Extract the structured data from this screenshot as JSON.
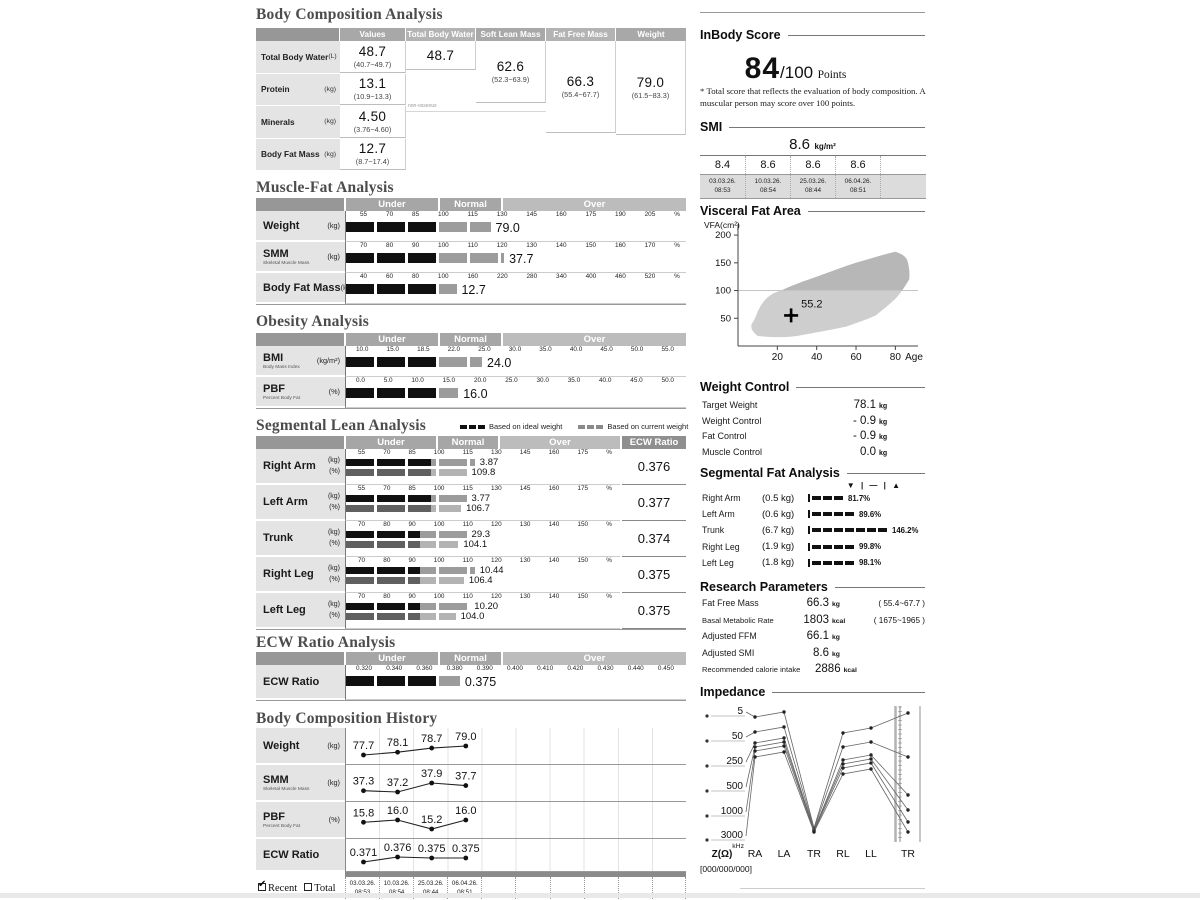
{
  "zones": {
    "under": "Under",
    "normal": "Normal",
    "over": "Over"
  },
  "dates": [
    {
      "date": "03.03.26.",
      "time": "08:53"
    },
    {
      "date": "10.03.26.",
      "time": "08:54"
    },
    {
      "date": "25.03.26.",
      "time": "08:44"
    },
    {
      "date": "06.04.26.",
      "time": "08:51"
    }
  ],
  "body_comp": {
    "title": "Body Composition Analysis",
    "col_headers": [
      "Values",
      "Total Body Water",
      "Soft Lean Mass",
      "Fat Free Mass",
      "Weight"
    ],
    "rows": [
      {
        "label": "Total Body Water",
        "unit": "(L)",
        "value": "48.7",
        "range": "(40.7~49.7)"
      },
      {
        "label": "Protein",
        "unit": "(kg)",
        "value": "13.1",
        "range": "(10.9~13.3)"
      },
      {
        "label": "Minerals",
        "unit": "(kg)",
        "value": "4.50",
        "range": "(3.76~4.60)"
      },
      {
        "label": "Body Fat Mass",
        "unit": "(kg)",
        "value": "12.7",
        "range": "(8.7~17.4)"
      }
    ],
    "tbw_value": "48.7",
    "slm_value": "62.6",
    "slm_range": "(52.3~63.9)",
    "ffm_value": "66.3",
    "ffm_range": "(55.4~67.7)",
    "weight_value": "79.0",
    "weight_range": "(61.5~83.3)",
    "fine_print": "non-osseous"
  },
  "muscle_fat": {
    "title": "Muscle-Fat Analysis",
    "rows": [
      {
        "label": "Weight",
        "sub": "",
        "unit": "(kg)",
        "ticks": [
          "55",
          "70",
          "85",
          "100",
          "115",
          "130",
          "145",
          "160",
          "175",
          "190",
          "205",
          "%"
        ],
        "value": "79.0",
        "bar": {
          "b": 0.273,
          "g": 0.425
        }
      },
      {
        "label": "SMM",
        "sub": "Skeletal Muscle Mass",
        "unit": "(kg)",
        "ticks": [
          "70",
          "80",
          "90",
          "100",
          "110",
          "120",
          "130",
          "140",
          "150",
          "160",
          "170",
          "%"
        ],
        "value": "37.7",
        "bar": {
          "b": 0.273,
          "g": 0.465
        }
      },
      {
        "label": "Body Fat Mass",
        "sub": "",
        "unit": "(kg)",
        "ticks": [
          "40",
          "60",
          "80",
          "100",
          "160",
          "220",
          "280",
          "340",
          "400",
          "460",
          "520",
          "%"
        ],
        "value": "12.7",
        "bar": {
          "b": 0.273,
          "g": 0.325
        }
      }
    ]
  },
  "obesity": {
    "title": "Obesity Analysis",
    "rows": [
      {
        "label": "BMI",
        "sub": "Body Mass Index",
        "unit": "(kg/m²)",
        "ticks": [
          "10.0",
          "15.0",
          "18.5",
          "22.0",
          "25.0",
          "30.0",
          "35.0",
          "40.0",
          "45.0",
          "50.0",
          "55.0"
        ],
        "value": "24.0",
        "bar": {
          "b": 0.273,
          "g": 0.4
        }
      },
      {
        "label": "PBF",
        "sub": "Percent Body Fat",
        "unit": "(%)",
        "ticks": [
          "0.0",
          "5.0",
          "10.0",
          "15.0",
          "20.0",
          "25.0",
          "30.0",
          "35.0",
          "40.0",
          "45.0",
          "50.0"
        ],
        "value": "16.0",
        "bar": {
          "b": 0.273,
          "g": 0.33
        }
      }
    ]
  },
  "seg_lean": {
    "title": "Segmental Lean Analysis",
    "legend_ideal": "Based on ideal weight",
    "legend_current": "Based on current weight",
    "ecw_header": "ECW Ratio",
    "rows": [
      {
        "label": "Right Arm",
        "unit1": "(kg)",
        "unit2": "(%)",
        "ticks": [
          "55",
          "70",
          "85",
          "100",
          "115",
          "130",
          "145",
          "160",
          "175",
          "%"
        ],
        "kg": "3.87",
        "pct": "109.8",
        "ecw": "0.376",
        "bar1": {
          "b": 0.31,
          "g": 0.47
        },
        "bar2": {
          "b": 0.31,
          "g": 0.44
        }
      },
      {
        "label": "Left Arm",
        "unit1": "(kg)",
        "unit2": "(%)",
        "ticks": [
          "55",
          "70",
          "85",
          "100",
          "115",
          "130",
          "145",
          "160",
          "175",
          "%"
        ],
        "kg": "3.77",
        "pct": "106.7",
        "ecw": "0.377",
        "bar1": {
          "b": 0.31,
          "g": 0.44
        },
        "bar2": {
          "b": 0.31,
          "g": 0.42
        }
      },
      {
        "label": "Trunk",
        "unit1": "(kg)",
        "unit2": "(%)",
        "ticks": [
          "70",
          "80",
          "90",
          "100",
          "110",
          "120",
          "130",
          "140",
          "150",
          "%"
        ],
        "kg": "29.3",
        "pct": "104.1",
        "ecw": "0.374",
        "bar1": {
          "b": 0.27,
          "g": 0.44
        },
        "bar2": {
          "b": 0.27,
          "g": 0.41
        }
      },
      {
        "label": "Right Leg",
        "unit1": "(kg)",
        "unit2": "(%)",
        "ticks": [
          "70",
          "80",
          "90",
          "100",
          "110",
          "120",
          "130",
          "140",
          "150",
          "%"
        ],
        "kg": "10.44",
        "pct": "106.4",
        "ecw": "0.375",
        "bar1": {
          "b": 0.27,
          "g": 0.47
        },
        "bar2": {
          "b": 0.27,
          "g": 0.43
        }
      },
      {
        "label": "Left Leg",
        "unit1": "(kg)",
        "unit2": "(%)",
        "ticks": [
          "70",
          "80",
          "90",
          "100",
          "110",
          "120",
          "130",
          "140",
          "150",
          "%"
        ],
        "kg": "10.20",
        "pct": "104.0",
        "ecw": "0.375",
        "bar1": {
          "b": 0.27,
          "g": 0.45
        },
        "bar2": {
          "b": 0.27,
          "g": 0.4
        }
      }
    ]
  },
  "ecw_analysis": {
    "title": "ECW Ratio Analysis",
    "row": {
      "label": "ECW Ratio",
      "ticks": [
        "0.320",
        "0.340",
        "0.360",
        "0.380",
        "0.390",
        "0.400",
        "0.410",
        "0.420",
        "0.430",
        "0.440",
        "0.450"
      ],
      "value": "0.375",
      "bar": {
        "b": 0.273,
        "g": 0.335
      }
    }
  },
  "history": {
    "title": "Body Composition History",
    "recent_label": "Recent",
    "total_label": "Total",
    "rows": [
      {
        "label": "Weight",
        "sub": "",
        "unit": "(kg)",
        "values": [
          77.7,
          78.1,
          78.7,
          79.0
        ],
        "labels": [
          "77.7",
          "78.1",
          "78.7",
          "79.0"
        ]
      },
      {
        "label": "SMM",
        "sub": "Skeletal Muscle Mass",
        "unit": "(kg)",
        "values": [
          37.3,
          37.2,
          37.9,
          37.7
        ],
        "labels": [
          "37.3",
          "37.2",
          "37.9",
          "37.7"
        ]
      },
      {
        "label": "PBF",
        "sub": "Percent Body Fat",
        "unit": "(%)",
        "values": [
          15.8,
          16.0,
          15.2,
          16.0
        ],
        "labels": [
          "15.8",
          "16.0",
          "15.2",
          "16.0"
        ]
      },
      {
        "label": "ECW Ratio",
        "sub": "",
        "unit": "",
        "values": [
          0.371,
          0.376,
          0.375,
          0.375
        ],
        "labels": [
          "0.371",
          "0.376",
          "0.375",
          "0.375"
        ]
      }
    ]
  },
  "score": {
    "title": "InBody Score",
    "value": "84",
    "denominator": "/100",
    "points_label": "Points",
    "note": "* Total score that reflects the evaluation of body composition. A muscular person may score over 100 points."
  },
  "smi": {
    "title": "SMI",
    "current_value": "8.6",
    "current_unit": "kg/m²",
    "values": [
      "8.4",
      "8.6",
      "8.6",
      "8.6"
    ]
  },
  "vfa": {
    "title": "Visceral Fat Area",
    "ylabel": "VFA(cm²)",
    "yticks": [
      "200",
      "150",
      "100",
      "50"
    ],
    "ytick_values": [
      200,
      150,
      100,
      50
    ],
    "xticks": [
      "20",
      "40",
      "60",
      "80"
    ],
    "xtick_values": [
      20,
      40,
      60,
      80
    ],
    "xlabel": "Age",
    "point_label": "55.2",
    "point_age": 27,
    "point_value": 55.2
  },
  "weight_control": {
    "title": "Weight Control",
    "rows": [
      {
        "label": "Target Weight",
        "value": "78.1",
        "unit": "kg"
      },
      {
        "label": "Weight Control",
        "value": "- 0.9",
        "unit": "kg"
      },
      {
        "label": "Fat Control",
        "value": "- 0.9",
        "unit": "kg"
      },
      {
        "label": "Muscle Control",
        "value": "0.0",
        "unit": "kg"
      }
    ]
  },
  "seg_fat": {
    "title": "Segmental Fat Analysis",
    "legend": "▼ | — | ▲",
    "rows": [
      {
        "label": "Right Arm",
        "kg": "(0.5 kg)",
        "pct": "81.7%",
        "dashes": 3
      },
      {
        "label": "Left Arm",
        "kg": "(0.6 kg)",
        "pct": "89.6%",
        "dashes": 4
      },
      {
        "label": "Trunk",
        "kg": "(6.7 kg)",
        "pct": "146.2%",
        "dashes": 7
      },
      {
        "label": "Right Leg",
        "kg": "(1.9 kg)",
        "pct": "99.8%",
        "dashes": 4
      },
      {
        "label": "Left Leg",
        "kg": "(1.8 kg)",
        "pct": "98.1%",
        "dashes": 4
      }
    ]
  },
  "research": {
    "title": "Research Parameters",
    "rows": [
      {
        "label": "Fat Free Mass",
        "value": "66.3",
        "unit": "kg",
        "range": "(  55.4~67.7  )"
      },
      {
        "label": "Basal Metabolic Rate",
        "value": "1803",
        "unit": "kcal",
        "range": "( 1675~1965 )"
      },
      {
        "label": "Adjusted FFM",
        "value": "66.1",
        "unit": "kg",
        "range": ""
      },
      {
        "label": "Adjusted SMI",
        "value": "8.6",
        "unit": "kg",
        "range": ""
      },
      {
        "label": "Recommended calorie intake",
        "value": "2886",
        "unit": "kcal",
        "range": ""
      }
    ]
  },
  "impedance": {
    "title": "Impedance",
    "freqs": [
      "5",
      "50",
      "250",
      "500",
      "1000",
      "3000"
    ],
    "khz_label": "kHz",
    "z_label": "Z(Ω)",
    "segments": [
      "RA",
      "LA",
      "TR",
      "RL",
      "LL",
      "TR"
    ],
    "footer": "[000/000/000]"
  },
  "chart_data": [
    {
      "type": "line",
      "title": "Body Composition History",
      "categories": [
        "03.03.26. 08:53",
        "10.03.26. 08:54",
        "25.03.26. 08:44",
        "06.04.26. 08:51"
      ],
      "series": [
        {
          "name": "Weight (kg)",
          "values": [
            77.7,
            78.1,
            78.7,
            79.0
          ]
        },
        {
          "name": "SMM (kg)",
          "values": [
            37.3,
            37.2,
            37.9,
            37.7
          ]
        },
        {
          "name": "PBF (%)",
          "values": [
            15.8,
            16.0,
            15.2,
            16.0
          ]
        },
        {
          "name": "ECW Ratio",
          "values": [
            0.371,
            0.376,
            0.375,
            0.375
          ]
        }
      ]
    },
    {
      "type": "line",
      "title": "SMI (kg/m²)",
      "categories": [
        "03.03.26. 08:53",
        "10.03.26. 08:54",
        "25.03.26. 08:44",
        "06.04.26. 08:51"
      ],
      "values": [
        8.4,
        8.6,
        8.6,
        8.6
      ]
    },
    {
      "type": "scatter",
      "title": "Visceral Fat Area",
      "xlabel": "Age",
      "ylabel": "VFA(cm²)",
      "xlim": [
        0,
        90
      ],
      "ylim": [
        0,
        220
      ],
      "points": [
        {
          "x": 27,
          "y": 55.2,
          "label": "55.2"
        }
      ]
    },
    {
      "type": "line",
      "title": "Impedance",
      "categories": [
        "RA",
        "LA",
        "TR",
        "RL",
        "LL",
        "TR"
      ],
      "series_labels": [
        "5 kHz",
        "50 kHz",
        "250 kHz",
        "500 kHz",
        "1000 kHz",
        "3000 kHz"
      ]
    }
  ]
}
